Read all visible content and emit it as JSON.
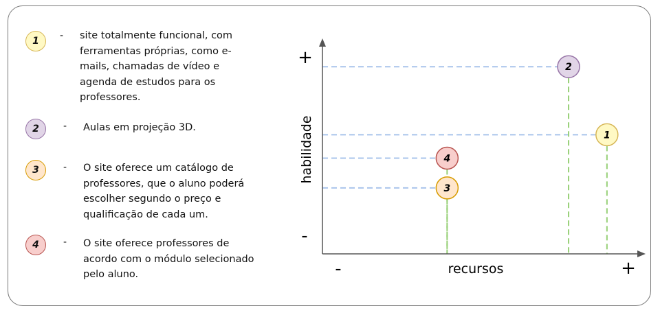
{
  "legend": [
    {
      "number": "1",
      "dash": "-",
      "text": "site totalmente funcional, com ferramentas próprias, como e-mails, chamadas de vídeo e agenda de estudos para os professores.",
      "fill": "#fff9c4",
      "stroke": "#d6b656"
    },
    {
      "number": "2",
      "dash": "-",
      "text": "Aulas em projeção 3D.",
      "fill": "#e1d5e7",
      "stroke": "#9673a6"
    },
    {
      "number": "3",
      "dash": "-",
      "text": "O site oferece um catálogo de professores, que o aluno poderá escolher segundo o preço e qualificação de cada um.",
      "fill": "#ffe6cc",
      "stroke": "#d79b00"
    },
    {
      "number": "4",
      "dash": "-",
      "text": "O site oferece professores de acordo com o módulo selecionado pelo aluno.",
      "fill": "#f8cecc",
      "stroke": "#b85450"
    }
  ],
  "chart_data": {
    "type": "scatter",
    "xlabel": "recursos",
    "ylabel": "habilidade",
    "x_min_label": "-",
    "x_max_label": "+",
    "y_min_label": "-",
    "y_max_label": "+",
    "points": [
      {
        "label": "1",
        "x": 0.89,
        "y": 0.56,
        "fill": "#fff9c4",
        "stroke": "#d6b656"
      },
      {
        "label": "2",
        "x": 0.77,
        "y": 0.88,
        "fill": "#e1d5e7",
        "stroke": "#9673a6"
      },
      {
        "label": "3",
        "x": 0.39,
        "y": 0.31,
        "fill": "#ffe6cc",
        "stroke": "#d79b00"
      },
      {
        "label": "4",
        "x": 0.39,
        "y": 0.45,
        "fill": "#f8cecc",
        "stroke": "#b85450"
      }
    ],
    "guide_h_color": "#a9c4eb",
    "guide_v_color": "#97d077"
  }
}
